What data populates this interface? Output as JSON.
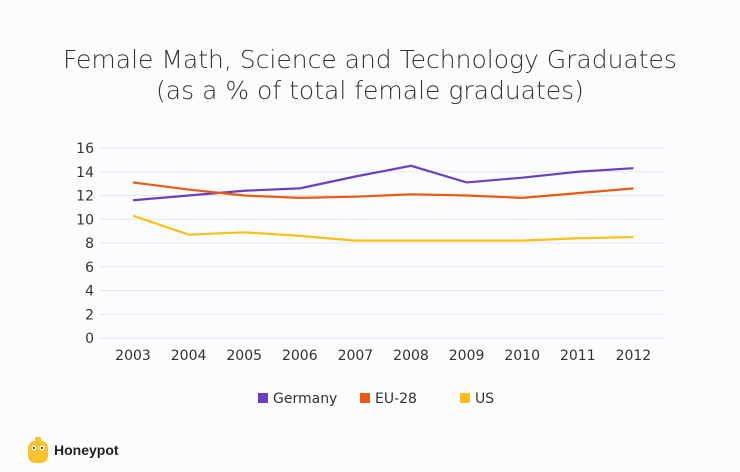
{
  "chart_data": {
    "type": "line",
    "title": "Female Math, Science and Technology Graduates",
    "subtitle": "(as a % of total female graduates)",
    "categories": [
      "2003",
      "2004",
      "2005",
      "2006",
      "2007",
      "2008",
      "2009",
      "2010",
      "2011",
      "2012"
    ],
    "ylim": [
      0,
      16
    ],
    "yticks": [
      0,
      2,
      4,
      6,
      8,
      10,
      12,
      14,
      16
    ],
    "grid": true,
    "legend": "bottom",
    "series": [
      {
        "name": "Germany",
        "color": "#6a3fc1",
        "values": [
          11.6,
          12.0,
          12.4,
          12.6,
          13.6,
          14.5,
          13.1,
          13.5,
          14.0,
          14.3
        ]
      },
      {
        "name": "EU-28",
        "color": "#ea5a14",
        "values": [
          13.1,
          12.5,
          12.0,
          11.8,
          11.9,
          12.1,
          12.0,
          11.8,
          12.2,
          12.6
        ]
      },
      {
        "name": "US",
        "color": "#fdbf16",
        "values": [
          10.3,
          8.7,
          8.9,
          8.6,
          8.2,
          8.2,
          8.2,
          8.2,
          8.4,
          8.5
        ]
      }
    ]
  },
  "brand": {
    "name": "Honeypot"
  }
}
